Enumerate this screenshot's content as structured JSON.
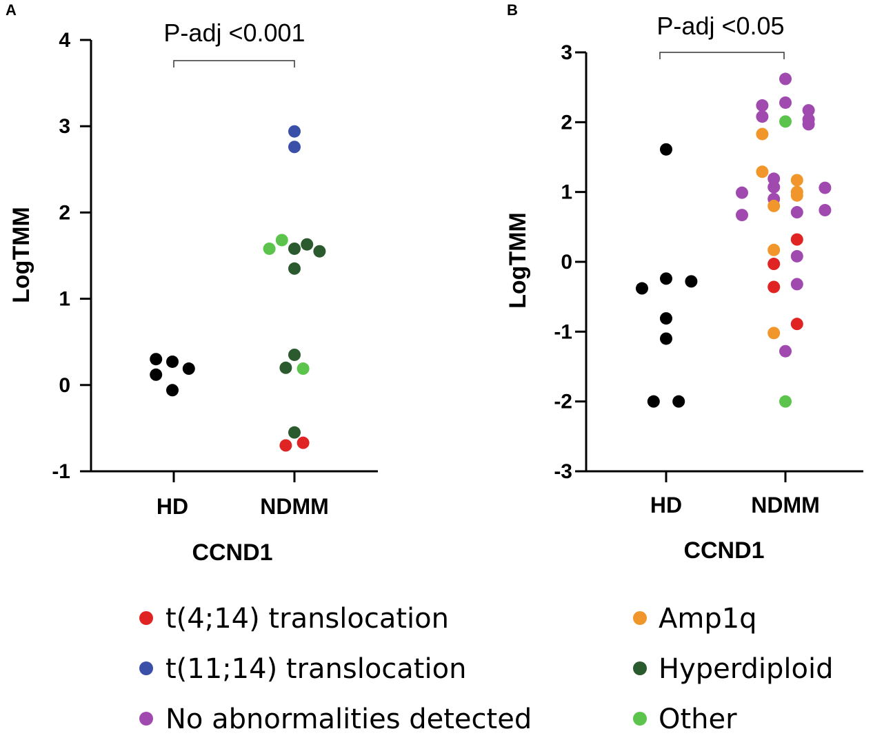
{
  "chart_data": [
    {
      "type": "scatter",
      "panel": "A",
      "annotation": "P-adj <0.001",
      "ylabel": "LogTMM",
      "xlabel": "CCND1",
      "categories": [
        "HD",
        "NDMM"
      ],
      "ylim": [
        -1,
        4
      ],
      "yticks": [
        "-1",
        "0",
        "1",
        "2",
        "3",
        "4"
      ],
      "points": [
        {
          "group": "HD",
          "offset": -0.17,
          "y": 0.3,
          "category": "none"
        },
        {
          "group": "HD",
          "offset": -0.17,
          "y": 0.12,
          "category": "none"
        },
        {
          "group": "HD",
          "offset": 0,
          "y": 0.27,
          "category": "none"
        },
        {
          "group": "HD",
          "offset": 0,
          "y": -0.06,
          "category": "none"
        },
        {
          "group": "HD",
          "offset": 0.17,
          "y": 0.19,
          "category": "none"
        },
        {
          "group": "NDMM",
          "offset": 0,
          "y": 2.94,
          "category": "t(11;14)"
        },
        {
          "group": "NDMM",
          "offset": 0,
          "y": 2.76,
          "category": "t(11;14)"
        },
        {
          "group": "NDMM",
          "offset": -0.26,
          "y": 1.58,
          "category": "Other"
        },
        {
          "group": "NDMM",
          "offset": -0.13,
          "y": 1.68,
          "category": "Other"
        },
        {
          "group": "NDMM",
          "offset": 0,
          "y": 1.58,
          "category": "Hyperdiploid"
        },
        {
          "group": "NDMM",
          "offset": 0.13,
          "y": 1.63,
          "category": "Hyperdiploid"
        },
        {
          "group": "NDMM",
          "offset": 0.26,
          "y": 1.55,
          "category": "Hyperdiploid"
        },
        {
          "group": "NDMM",
          "offset": 0,
          "y": 1.35,
          "category": "Hyperdiploid"
        },
        {
          "group": "NDMM",
          "offset": 0,
          "y": 0.35,
          "category": "Hyperdiploid"
        },
        {
          "group": "NDMM",
          "offset": -0.09,
          "y": 0.2,
          "category": "Hyperdiploid"
        },
        {
          "group": "NDMM",
          "offset": 0.09,
          "y": 0.19,
          "category": "Other"
        },
        {
          "group": "NDMM",
          "offset": 0,
          "y": -0.55,
          "category": "Hyperdiploid"
        },
        {
          "group": "NDMM",
          "offset": -0.09,
          "y": -0.7,
          "category": "t(4;14)"
        },
        {
          "group": "NDMM",
          "offset": 0.09,
          "y": -0.67,
          "category": "t(4;14)"
        }
      ]
    },
    {
      "type": "scatter",
      "panel": "B",
      "annotation": "P-adj <0.05",
      "ylabel": "LogTMM",
      "xlabel": "CCND1",
      "categories": [
        "HD",
        "NDMM"
      ],
      "ylim": [
        -3,
        3
      ],
      "yticks": [
        "-3",
        "-2",
        "-1",
        "0",
        "1",
        "2",
        "3"
      ],
      "points": [
        {
          "group": "HD",
          "offset": 0,
          "y": 1.61,
          "category": "none"
        },
        {
          "group": "HD",
          "offset": -0.25,
          "y": -0.38,
          "category": "none"
        },
        {
          "group": "HD",
          "offset": 0,
          "y": -0.24,
          "category": "none"
        },
        {
          "group": "HD",
          "offset": 0.26,
          "y": -0.28,
          "category": "none"
        },
        {
          "group": "HD",
          "offset": 0,
          "y": -0.81,
          "category": "none"
        },
        {
          "group": "HD",
          "offset": 0,
          "y": -1.1,
          "category": "none"
        },
        {
          "group": "HD",
          "offset": -0.13,
          "y": -2.0,
          "category": "none"
        },
        {
          "group": "HD",
          "offset": 0.13,
          "y": -2.0,
          "category": "none"
        },
        {
          "group": "NDMM",
          "offset": 0,
          "y": 2.62,
          "category": "No abnormalities"
        },
        {
          "group": "NDMM",
          "offset": -0.24,
          "y": 2.24,
          "category": "No abnormalities"
        },
        {
          "group": "NDMM",
          "offset": 0,
          "y": 2.28,
          "category": "No abnormalities"
        },
        {
          "group": "NDMM",
          "offset": 0.24,
          "y": 2.17,
          "category": "No abnormalities"
        },
        {
          "group": "NDMM",
          "offset": -0.24,
          "y": 2.08,
          "category": "No abnormalities"
        },
        {
          "group": "NDMM",
          "offset": 0,
          "y": 2.01,
          "category": "Other"
        },
        {
          "group": "NDMM",
          "offset": 0.24,
          "y": 2.04,
          "category": "No abnormalities"
        },
        {
          "group": "NDMM",
          "offset": 0.24,
          "y": 1.97,
          "category": "No abnormalities"
        },
        {
          "group": "NDMM",
          "offset": -0.24,
          "y": 1.83,
          "category": "Amp1q"
        },
        {
          "group": "NDMM",
          "offset": -0.24,
          "y": 1.29,
          "category": "Amp1q"
        },
        {
          "group": "NDMM",
          "offset": -0.12,
          "y": 1.19,
          "category": "No abnormalities"
        },
        {
          "group": "NDMM",
          "offset": 0.12,
          "y": 1.17,
          "category": "Amp1q"
        },
        {
          "group": "NDMM",
          "offset": -0.12,
          "y": 1.07,
          "category": "No abnormalities"
        },
        {
          "group": "NDMM",
          "offset": 0.41,
          "y": 1.06,
          "category": "No abnormalities"
        },
        {
          "group": "NDMM",
          "offset": -0.45,
          "y": 0.99,
          "category": "No abnormalities"
        },
        {
          "group": "NDMM",
          "offset": 0.12,
          "y": 1.0,
          "category": "Amp1q"
        },
        {
          "group": "NDMM",
          "offset": 0.12,
          "y": 0.95,
          "category": "Amp1q"
        },
        {
          "group": "NDMM",
          "offset": -0.12,
          "y": 0.9,
          "category": "No abnormalities"
        },
        {
          "group": "NDMM",
          "offset": -0.12,
          "y": 0.8,
          "category": "Amp1q"
        },
        {
          "group": "NDMM",
          "offset": 0.41,
          "y": 0.74,
          "category": "No abnormalities"
        },
        {
          "group": "NDMM",
          "offset": 0.12,
          "y": 0.71,
          "category": "No abnormalities"
        },
        {
          "group": "NDMM",
          "offset": -0.45,
          "y": 0.67,
          "category": "No abnormalities"
        },
        {
          "group": "NDMM",
          "offset": 0.12,
          "y": 0.32,
          "category": "t(4;14)"
        },
        {
          "group": "NDMM",
          "offset": -0.12,
          "y": 0.17,
          "category": "Amp1q"
        },
        {
          "group": "NDMM",
          "offset": 0.12,
          "y": 0.08,
          "category": "No abnormalities"
        },
        {
          "group": "NDMM",
          "offset": -0.12,
          "y": -0.03,
          "category": "t(4;14)"
        },
        {
          "group": "NDMM",
          "offset": 0.12,
          "y": -0.32,
          "category": "No abnormalities"
        },
        {
          "group": "NDMM",
          "offset": -0.12,
          "y": -0.36,
          "category": "t(4;14)"
        },
        {
          "group": "NDMM",
          "offset": 0.12,
          "y": -0.89,
          "category": "t(4;14)"
        },
        {
          "group": "NDMM",
          "offset": -0.12,
          "y": -1.02,
          "category": "Amp1q"
        },
        {
          "group": "NDMM",
          "offset": 0,
          "y": -1.28,
          "category": "No abnormalities"
        },
        {
          "group": "NDMM",
          "offset": 0,
          "y": -2.0,
          "category": "Other"
        }
      ]
    }
  ],
  "legend": [
    {
      "key": "t(4;14)",
      "label": "t(4;14) translocation",
      "color": "#e02424"
    },
    {
      "key": "t(11;14)",
      "label": "t(11;14) translocation",
      "color": "#3a4fa8"
    },
    {
      "key": "No abnormalities",
      "label": "No abnormalities detected",
      "color": "#a04ab0"
    },
    {
      "key": "Amp1q",
      "label": "Amp1q",
      "color": "#f0962a"
    },
    {
      "key": "Hyperdiploid",
      "label": "Hyperdiploid",
      "color": "#2b5a2e"
    },
    {
      "key": "Other",
      "label": "Other",
      "color": "#5cc44c"
    }
  ],
  "colors": {
    "none": "#000000",
    "t(4;14)": "#e02424",
    "t(11;14)": "#3a4fa8",
    "No abnormalities": "#a04ab0",
    "Amp1q": "#f0962a",
    "Hyperdiploid": "#2b5a2e",
    "Other": "#5cc44c"
  }
}
